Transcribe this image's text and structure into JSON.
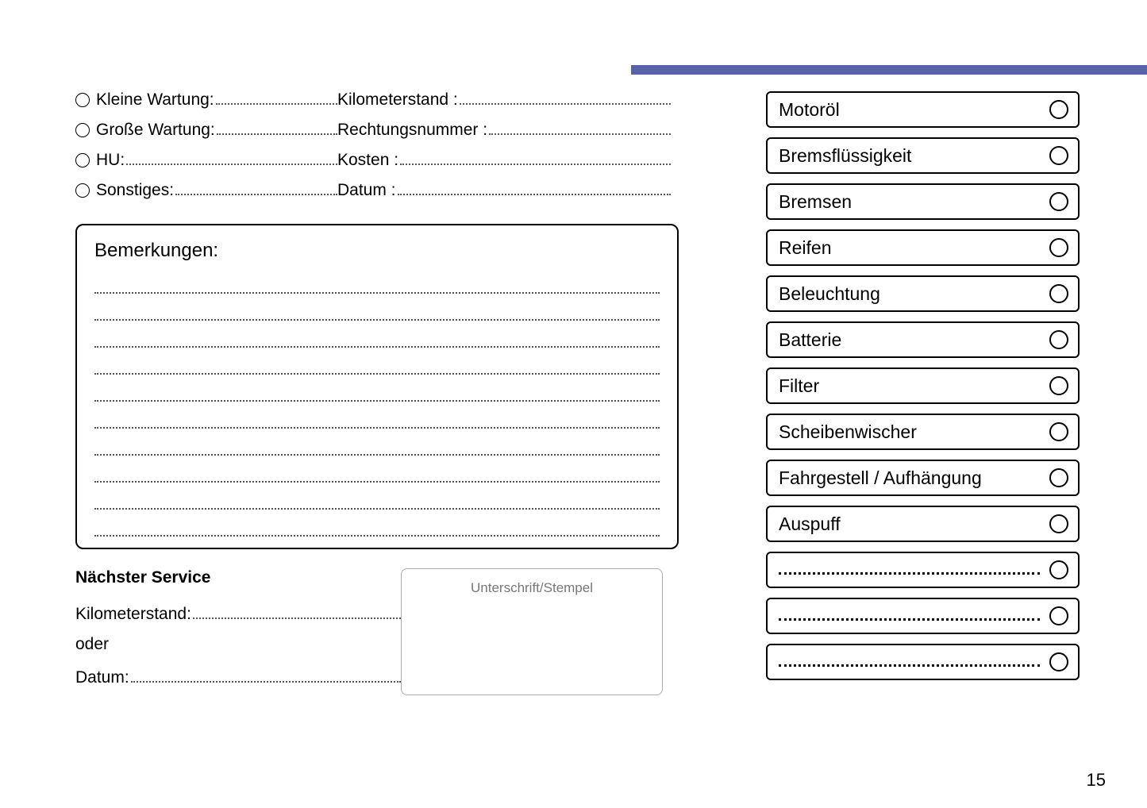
{
  "header": {
    "bar_color": "#5862a9"
  },
  "form": {
    "left": [
      {
        "label": "Kleine Wartung:"
      },
      {
        "label": "Große Wartung:"
      },
      {
        "label": "HU:"
      },
      {
        "label": "Sonstiges:"
      }
    ],
    "right": [
      {
        "label": "Kilometerstand :"
      },
      {
        "label": "Rechtungsnummer :"
      },
      {
        "label": "Kosten :"
      },
      {
        "label": "Datum :"
      }
    ]
  },
  "remarks": {
    "title": "Bemerkungen:",
    "line_count": 10
  },
  "next_service": {
    "title": "Nächster Service",
    "km_label": "Kilometerstand:",
    "or_label": "oder",
    "date_label": "Datum:",
    "signature_label": "Unterschrift/Stempel"
  },
  "checklist": [
    {
      "label": "Motoröl",
      "blank": false
    },
    {
      "label": "Bremsflüssigkeit",
      "blank": false
    },
    {
      "label": "Bremsen",
      "blank": false
    },
    {
      "label": "Reifen",
      "blank": false
    },
    {
      "label": "Beleuchtung",
      "blank": false
    },
    {
      "label": "Batterie",
      "blank": false
    },
    {
      "label": "Filter",
      "blank": false
    },
    {
      "label": "Scheibenwischer",
      "blank": false
    },
    {
      "label": "Fahrgestell / Aufhängung",
      "blank": false
    },
    {
      "label": "Auspuff",
      "blank": false
    },
    {
      "label": "",
      "blank": true
    },
    {
      "label": "",
      "blank": true
    },
    {
      "label": "",
      "blank": true
    }
  ],
  "page_number": "15"
}
